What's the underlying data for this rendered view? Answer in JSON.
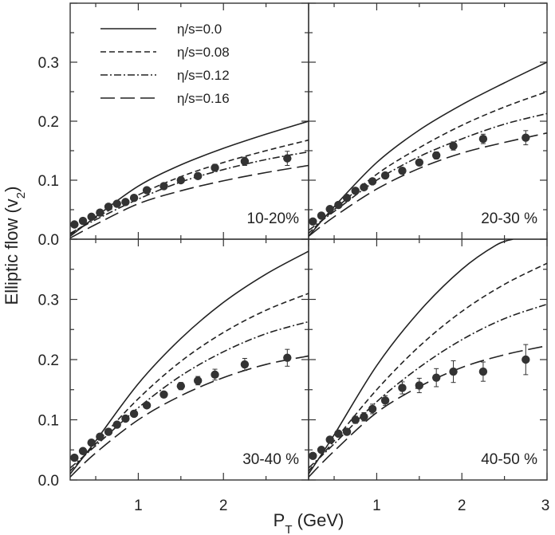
{
  "chart_data": {
    "type": "scatter",
    "ylabel": "Elliptic flow (v",
    "ylabel_sub": "2",
    "ylabel_close": ")",
    "xlabel": "P",
    "xlabel_sub": "T",
    "xlabel_unit": " (GeV)",
    "xlim": [
      0.2,
      3.0
    ],
    "ylim": [
      0.0,
      0.4
    ],
    "yticks": [
      0.0,
      0.1,
      0.2,
      0.3
    ],
    "ytick_labels": [
      "0.0",
      "0.1",
      "0.2",
      "0.3"
    ],
    "xticks_left": [
      1,
      2
    ],
    "xtick_labels_left": [
      "1",
      "2"
    ],
    "xticks_right": [
      1,
      2,
      3
    ],
    "xtick_labels_right": [
      "1",
      "2",
      "3"
    ],
    "legend": {
      "placement": "top-left",
      "entries": [
        {
          "label": "η/s=0.0",
          "style": "solid"
        },
        {
          "label": "η/s=0.08",
          "style": "dashed"
        },
        {
          "label": "η/s=0.12",
          "style": "dashdot"
        },
        {
          "label": "η/s=0.16",
          "style": "longdash"
        }
      ]
    },
    "panels": [
      {
        "label": "10-20%",
        "points": {
          "x": [
            0.25,
            0.35,
            0.45,
            0.55,
            0.65,
            0.75,
            0.85,
            0.95,
            1.1,
            1.3,
            1.5,
            1.7,
            1.9,
            2.25,
            2.75
          ],
          "y": [
            0.025,
            0.031,
            0.038,
            0.045,
            0.055,
            0.06,
            0.063,
            0.07,
            0.083,
            0.09,
            0.1,
            0.107,
            0.121,
            0.132,
            0.137
          ],
          "yerr": [
            0.002,
            0.002,
            0.002,
            0.002,
            0.002,
            0.002,
            0.003,
            0.003,
            0.003,
            0.004,
            0.004,
            0.005,
            0.006,
            0.007,
            0.012
          ]
        },
        "curves": [
          {
            "style": "solid",
            "x": [
              0.2,
              0.5,
              1.0,
              1.5,
              2.0,
              2.5,
              3.0
            ],
            "y": [
              0.005,
              0.038,
              0.09,
              0.126,
              0.154,
              0.178,
              0.2
            ]
          },
          {
            "style": "dashed",
            "x": [
              0.2,
              0.5,
              1.0,
              1.5,
              2.0,
              2.5,
              3.0
            ],
            "y": [
              0.008,
              0.036,
              0.075,
              0.106,
              0.13,
              0.15,
              0.168
            ]
          },
          {
            "style": "dashdot",
            "x": [
              0.2,
              0.5,
              1.0,
              1.5,
              2.0,
              2.5,
              3.0
            ],
            "y": [
              0.01,
              0.033,
              0.068,
              0.097,
              0.118,
              0.135,
              0.148
            ]
          },
          {
            "style": "longdash",
            "x": [
              0.2,
              0.5,
              1.0,
              1.5,
              2.0,
              2.5,
              3.0
            ],
            "y": [
              0.002,
              0.025,
              0.06,
              0.082,
              0.099,
              0.113,
              0.125
            ]
          }
        ]
      },
      {
        "label": "20-30 %",
        "points": {
          "x": [
            0.25,
            0.35,
            0.45,
            0.55,
            0.65,
            0.75,
            0.85,
            0.95,
            1.1,
            1.3,
            1.5,
            1.7,
            1.9,
            2.25,
            2.75
          ],
          "y": [
            0.03,
            0.04,
            0.051,
            0.058,
            0.07,
            0.082,
            0.088,
            0.098,
            0.108,
            0.116,
            0.13,
            0.142,
            0.158,
            0.17,
            0.172
          ],
          "yerr": [
            0.002,
            0.002,
            0.002,
            0.002,
            0.003,
            0.003,
            0.003,
            0.004,
            0.004,
            0.005,
            0.005,
            0.006,
            0.007,
            0.008,
            0.012
          ]
        },
        "curves": [
          {
            "style": "solid",
            "x": [
              0.2,
              0.5,
              1.0,
              1.5,
              2.0,
              2.5,
              3.0
            ],
            "y": [
              0.005,
              0.055,
              0.13,
              0.185,
              0.228,
              0.265,
              0.3
            ]
          },
          {
            "style": "dashed",
            "x": [
              0.2,
              0.5,
              1.0,
              1.5,
              2.0,
              2.5,
              3.0
            ],
            "y": [
              0.01,
              0.05,
              0.11,
              0.155,
              0.193,
              0.224,
              0.25
            ]
          },
          {
            "style": "dashdot",
            "x": [
              0.2,
              0.5,
              1.0,
              1.5,
              2.0,
              2.5,
              3.0
            ],
            "y": [
              0.015,
              0.047,
              0.1,
              0.14,
              0.17,
              0.195,
              0.213
            ]
          },
          {
            "style": "longdash",
            "x": [
              0.2,
              0.5,
              1.0,
              1.5,
              2.0,
              2.5,
              3.0
            ],
            "y": [
              0.005,
              0.038,
              0.085,
              0.12,
              0.146,
              0.164,
              0.18
            ]
          }
        ]
      },
      {
        "label": "30-40 %",
        "points": {
          "x": [
            0.25,
            0.35,
            0.45,
            0.55,
            0.65,
            0.75,
            0.85,
            0.95,
            1.1,
            1.3,
            1.5,
            1.7,
            1.9,
            2.25,
            2.75
          ],
          "y": [
            0.037,
            0.048,
            0.062,
            0.072,
            0.08,
            0.092,
            0.102,
            0.11,
            0.124,
            0.142,
            0.156,
            0.165,
            0.175,
            0.192,
            0.203
          ],
          "yerr": [
            0.002,
            0.003,
            0.003,
            0.003,
            0.003,
            0.004,
            0.004,
            0.004,
            0.005,
            0.005,
            0.006,
            0.007,
            0.009,
            0.01,
            0.014
          ]
        },
        "curves": [
          {
            "style": "solid",
            "x": [
              0.2,
              0.5,
              1.0,
              1.5,
              2.0,
              2.5,
              3.0
            ],
            "y": [
              0.01,
              0.065,
              0.16,
              0.235,
              0.295,
              0.342,
              0.38
            ]
          },
          {
            "style": "dashed",
            "x": [
              0.2,
              0.5,
              1.0,
              1.5,
              2.0,
              2.5,
              3.0
            ],
            "y": [
              0.015,
              0.06,
              0.135,
              0.197,
              0.245,
              0.282,
              0.31
            ]
          },
          {
            "style": "dashdot",
            "x": [
              0.2,
              0.5,
              1.0,
              1.5,
              2.0,
              2.5,
              3.0
            ],
            "y": [
              0.02,
              0.057,
              0.12,
              0.173,
              0.213,
              0.243,
              0.263
            ]
          },
          {
            "style": "longdash",
            "x": [
              0.2,
              0.5,
              1.0,
              1.5,
              2.0,
              2.5,
              3.0
            ],
            "y": [
              0.005,
              0.045,
              0.1,
              0.14,
              0.17,
              0.192,
              0.206
            ]
          }
        ]
      },
      {
        "label": "40-50 %",
        "points": {
          "x": [
            0.25,
            0.35,
            0.45,
            0.55,
            0.65,
            0.75,
            0.85,
            0.95,
            1.1,
            1.3,
            1.5,
            1.7,
            1.9,
            2.25,
            2.75
          ],
          "y": [
            0.04,
            0.05,
            0.067,
            0.077,
            0.08,
            0.1,
            0.105,
            0.118,
            0.132,
            0.153,
            0.157,
            0.17,
            0.18,
            0.18,
            0.2
          ],
          "yerr": [
            0.003,
            0.003,
            0.004,
            0.004,
            0.005,
            0.006,
            0.007,
            0.008,
            0.008,
            0.01,
            0.012,
            0.015,
            0.018,
            0.016,
            0.025
          ]
        },
        "curves": [
          {
            "style": "solid",
            "x": [
              0.2,
              0.5,
              1.0,
              1.5,
              2.0,
              2.4,
              2.6
            ],
            "y": [
              0.01,
              0.075,
              0.19,
              0.28,
              0.35,
              0.39,
              0.4
            ]
          },
          {
            "style": "dashed",
            "x": [
              0.2,
              0.5,
              1.0,
              1.5,
              2.0,
              2.5,
              3.0
            ],
            "y": [
              0.015,
              0.065,
              0.15,
              0.222,
              0.28,
              0.325,
              0.36
            ]
          },
          {
            "style": "dashdot",
            "x": [
              0.2,
              0.5,
              1.0,
              1.5,
              2.0,
              2.5,
              3.0
            ],
            "y": [
              0.02,
              0.06,
              0.13,
              0.187,
              0.233,
              0.268,
              0.292
            ]
          },
          {
            "style": "longdash",
            "x": [
              0.2,
              0.5,
              1.0,
              1.5,
              2.0,
              2.5,
              3.0
            ],
            "y": [
              0.005,
              0.048,
              0.112,
              0.155,
              0.187,
              0.208,
              0.223
            ]
          }
        ]
      }
    ]
  }
}
